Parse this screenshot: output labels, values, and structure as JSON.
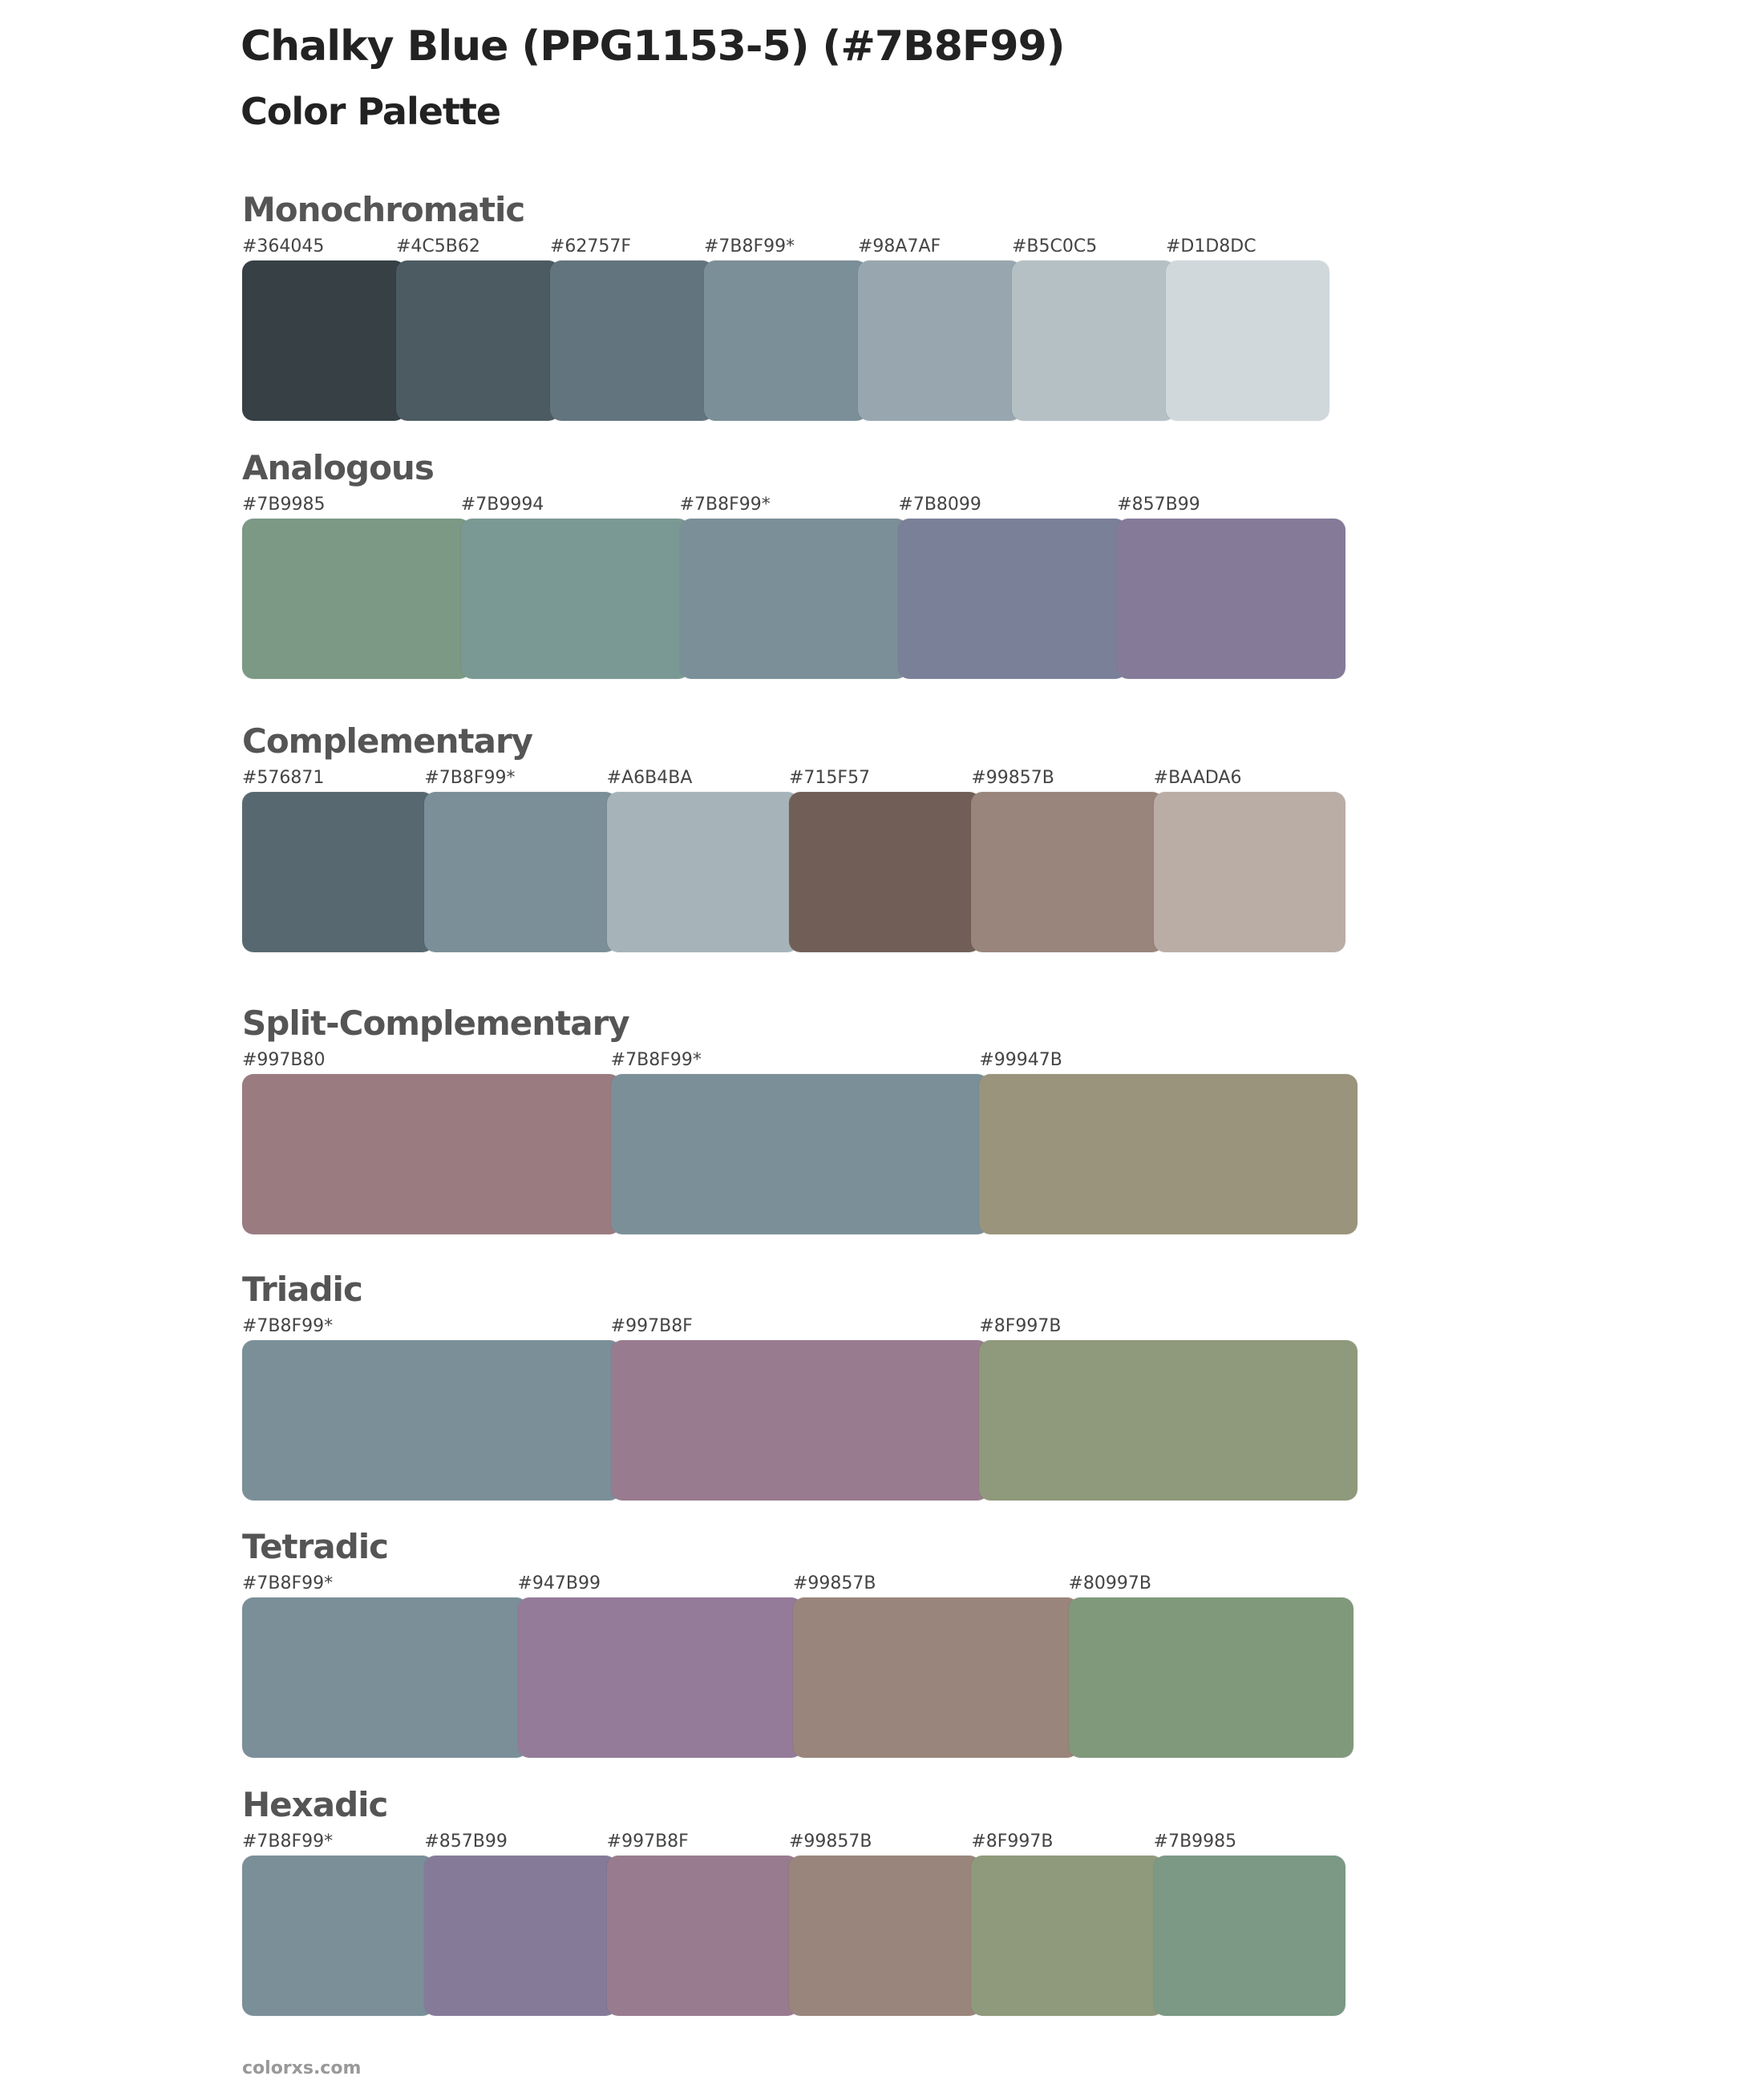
{
  "title": "Chalky Blue (PPG1153-5) (#7B8F99)",
  "subtitle": "Color Palette",
  "sections": [
    {
      "name": "Monochromatic",
      "colors": [
        {
          "label": "#364045",
          "hex": "#364045"
        },
        {
          "label": "#4C5B62",
          "hex": "#4C5B62"
        },
        {
          "label": "#62757F",
          "hex": "#62757F"
        },
        {
          "label": "#7B8F99*",
          "hex": "#7B8F99"
        },
        {
          "label": "#98A7AF",
          "hex": "#98A7AF"
        },
        {
          "label": "#B5C0C5",
          "hex": "#B5C0C5"
        },
        {
          "label": "#D1D8DC",
          "hex": "#D1D8DC"
        }
      ]
    },
    {
      "name": "Analogous",
      "colors": [
        {
          "label": "#7B9985",
          "hex": "#7B9985"
        },
        {
          "label": "#7B9994",
          "hex": "#7B9994"
        },
        {
          "label": "#7B8F99*",
          "hex": "#7B8F99"
        },
        {
          "label": "#7B8099",
          "hex": "#7B8099"
        },
        {
          "label": "#857B99",
          "hex": "#857B99"
        }
      ]
    },
    {
      "name": "Complementary",
      "colors": [
        {
          "label": "#576871",
          "hex": "#576871"
        },
        {
          "label": "#7B8F99*",
          "hex": "#7B8F99"
        },
        {
          "label": "#A6B4BA",
          "hex": "#A6B4BA"
        },
        {
          "label": "#715F57",
          "hex": "#715F57"
        },
        {
          "label": "#99857B",
          "hex": "#99857B"
        },
        {
          "label": "#BAADA6",
          "hex": "#BAADA6"
        }
      ]
    },
    {
      "name": "Split-Complementary",
      "colors": [
        {
          "label": "#997B80",
          "hex": "#997B80"
        },
        {
          "label": "#7B8F99*",
          "hex": "#7B8F99"
        },
        {
          "label": "#99947B",
          "hex": "#99947B"
        }
      ]
    },
    {
      "name": "Triadic",
      "colors": [
        {
          "label": "#7B8F99*",
          "hex": "#7B8F99"
        },
        {
          "label": "#997B8F",
          "hex": "#997B8F"
        },
        {
          "label": "#8F997B",
          "hex": "#8F997B"
        }
      ]
    },
    {
      "name": "Tetradic",
      "colors": [
        {
          "label": "#7B8F99*",
          "hex": "#7B8F99"
        },
        {
          "label": "#947B99",
          "hex": "#947B99"
        },
        {
          "label": "#99857B",
          "hex": "#99857B"
        },
        {
          "label": "#80997B",
          "hex": "#80997B"
        }
      ]
    },
    {
      "name": "Hexadic",
      "colors": [
        {
          "label": "#7B8F99*",
          "hex": "#7B8F99"
        },
        {
          "label": "#857B99",
          "hex": "#857B99"
        },
        {
          "label": "#997B8F",
          "hex": "#997B8F"
        },
        {
          "label": "#99857B",
          "hex": "#99857B"
        },
        {
          "label": "#8F997B",
          "hex": "#8F997B"
        },
        {
          "label": "#7B9985",
          "hex": "#7B9985"
        }
      ]
    }
  ],
  "footer": "colorxs.com"
}
